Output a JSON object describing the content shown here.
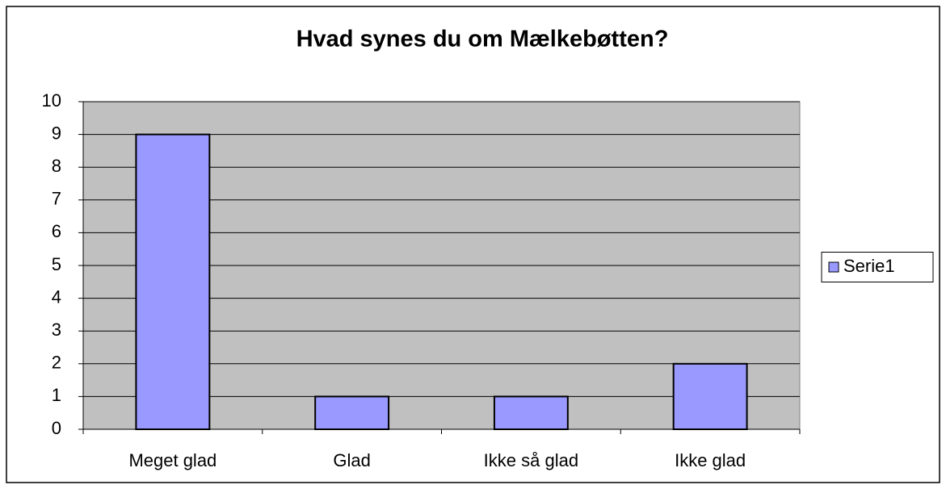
{
  "chart_data": {
    "type": "bar",
    "title": "Hvad synes du om Mælkebøtten?",
    "categories": [
      "Meget glad",
      "Glad",
      "Ikke så glad",
      "Ikke glad"
    ],
    "series": [
      {
        "name": "Serie1",
        "color": "#9999ff",
        "values": [
          9,
          1,
          1,
          2
        ]
      }
    ],
    "ylim": [
      0,
      10
    ],
    "yticks": [
      0,
      1,
      2,
      3,
      4,
      5,
      6,
      7,
      8,
      9,
      10
    ],
    "grid": true,
    "legend": "right",
    "plot_background": "#c0c0c0"
  }
}
